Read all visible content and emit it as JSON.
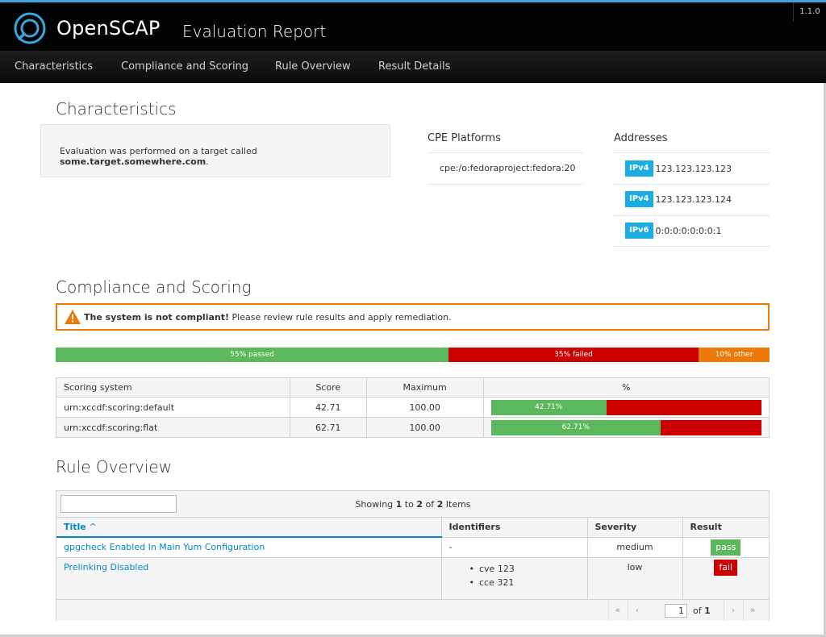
{
  "header": {
    "brand": "OpenSCAP",
    "subtitle": "Evaluation Report",
    "version": "1.1.0"
  },
  "nav": {
    "items": [
      "Characteristics",
      "Compliance and Scoring",
      "Rule Overview",
      "Result Details"
    ]
  },
  "characteristics": {
    "heading": "Characteristics",
    "target_prefix": "Evaluation was performed on a target called ",
    "target_name": "some.target.somewhere.com",
    "target_suffix": ".",
    "cpe_heading": "CPE Platforms",
    "cpe_platform": "cpe:/o:fedoraproject:fedora:20",
    "addresses_heading": "Addresses",
    "addresses": [
      {
        "type": "IPv4",
        "value": "123.123.123.123"
      },
      {
        "type": "IPv4",
        "value": "123.123.123.124"
      },
      {
        "type": "IPv6",
        "value": "0:0:0:0:0:0:0:1"
      }
    ]
  },
  "compliance": {
    "heading": "Compliance and Scoring",
    "alert_bold": "The system is not compliant!",
    "alert_text": " Please review rule results and apply remediation.",
    "progress": [
      {
        "label": "55% passed",
        "percent": 55,
        "color": "#5cb85c"
      },
      {
        "label": "35% failed",
        "percent": 35,
        "color": "#cc0000"
      },
      {
        "label": "10% other",
        "percent": 10,
        "color": "#ec7a08"
      }
    ],
    "score_table": {
      "headers": [
        "Scoring system",
        "Score",
        "Maximum",
        "%"
      ],
      "rows": [
        {
          "system": "urn:xccdf:scoring:default",
          "score": "42.71",
          "maximum": "100.00",
          "percent": 42.71,
          "percent_label": "42.71%"
        },
        {
          "system": "urn:xccdf:scoring:flat",
          "score": "62.71",
          "maximum": "100.00",
          "percent": 62.71,
          "percent_label": "62.71%"
        }
      ]
    }
  },
  "rules": {
    "heading": "Rule Overview",
    "filter_value": "",
    "showing_prefix": "Showing ",
    "showing_from": "1",
    "showing_mid": " to ",
    "showing_to": "2",
    "showing_of": " of ",
    "showing_total": "2",
    "showing_suffix": " Items",
    "headers": {
      "title": "Title",
      "sort_indicator": "^",
      "identifiers": "Identifiers",
      "severity": "Severity",
      "result": "Result"
    },
    "rows": [
      {
        "title": "gpgcheck Enabled In Main Yum Configuration",
        "identifiers_text": "-",
        "identifiers": [],
        "severity": "medium",
        "result": "pass"
      },
      {
        "title": "Prelinking Disabled",
        "identifiers_text": "",
        "identifiers": [
          "cve 123",
          "cce 321"
        ],
        "severity": "low",
        "result": "fail"
      }
    ],
    "pager": {
      "first": "«",
      "prev": "‹",
      "page": "1",
      "of": "of",
      "total": "1",
      "next": "›",
      "last": "»"
    }
  }
}
